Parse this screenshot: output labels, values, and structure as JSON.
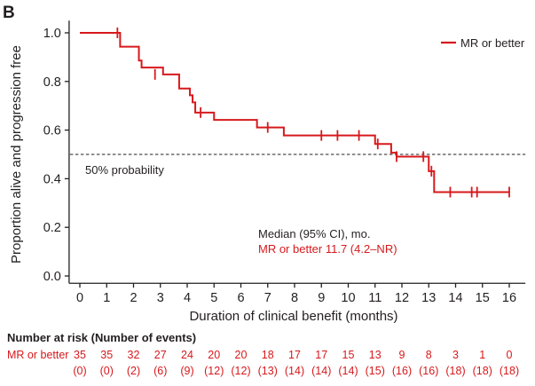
{
  "panel_label": "B",
  "chart_data": {
    "type": "line",
    "step": true,
    "x_label": "Duration of clinical benefit (months)",
    "y_label": "Proportion alive and progression free",
    "xlim": [
      -0.4,
      16.6
    ],
    "ylim": [
      -0.03,
      1.05
    ],
    "x_ticks": [
      0,
      1,
      2,
      3,
      4,
      5,
      6,
      7,
      8,
      9,
      10,
      11,
      12,
      13,
      14,
      15,
      16
    ],
    "y_ticks": [
      0.0,
      0.2,
      0.4,
      0.6,
      0.8,
      1.0
    ],
    "y_tick_labels": [
      "0.0",
      "0.2",
      "0.4",
      "0.6",
      "0.8",
      "1.0"
    ],
    "grid": false,
    "legend": {
      "position": "top-right",
      "label": "MR or better"
    },
    "series": [
      {
        "name": "MR or better",
        "color": "#d7191c",
        "steps": [
          [
            0,
            1.0
          ],
          [
            1.5,
            0.943
          ],
          [
            2.2,
            0.886
          ],
          [
            2.3,
            0.857
          ],
          [
            3.1,
            0.829
          ],
          [
            3.7,
            0.771
          ],
          [
            4.1,
            0.743
          ],
          [
            4.2,
            0.714
          ],
          [
            4.3,
            0.672
          ],
          [
            5.0,
            0.642
          ],
          [
            6.6,
            0.611
          ],
          [
            7.6,
            0.578
          ],
          [
            11.0,
            0.543
          ],
          [
            11.6,
            0.507
          ],
          [
            11.8,
            0.491
          ],
          [
            13.0,
            0.431
          ],
          [
            13.2,
            0.345
          ],
          [
            16.0,
            0.345
          ]
        ],
        "censor_marks": [
          [
            1.4,
            1.0
          ],
          [
            2.8,
            0.829
          ],
          [
            4.5,
            0.672
          ],
          [
            7.0,
            0.611
          ],
          [
            9.0,
            0.578
          ],
          [
            9.6,
            0.578
          ],
          [
            10.4,
            0.578
          ],
          [
            11.1,
            0.543
          ],
          [
            11.8,
            0.491
          ],
          [
            12.8,
            0.491
          ],
          [
            13.1,
            0.431
          ],
          [
            13.8,
            0.345
          ],
          [
            14.6,
            0.345
          ],
          [
            14.8,
            0.345
          ],
          [
            16.0,
            0.345
          ]
        ]
      }
    ],
    "reference_line": {
      "y": 0.5,
      "style": "dashed",
      "color": "#231f20",
      "label": "50% probability"
    },
    "annotation": {
      "line1": "Median (95% CI), mo.",
      "line2": "MR or better 11.7 (4.2–NR)"
    },
    "risk_table": {
      "title": "Number at risk (Number of events)",
      "row_label": "MR or better",
      "at_risk": [
        "35",
        "35",
        "32",
        "27",
        "24",
        "20",
        "20",
        "18",
        "17",
        "17",
        "15",
        "13",
        "9",
        "8",
        "3",
        "1",
        "0"
      ],
      "events": [
        "(0)",
        "(0)",
        "(2)",
        "(6)",
        "(9)",
        "(12)",
        "(12)",
        "(13)",
        "(14)",
        "(14)",
        "(14)",
        "(15)",
        "(16)",
        "(16)",
        "(18)",
        "(18)",
        "(18)"
      ]
    }
  }
}
